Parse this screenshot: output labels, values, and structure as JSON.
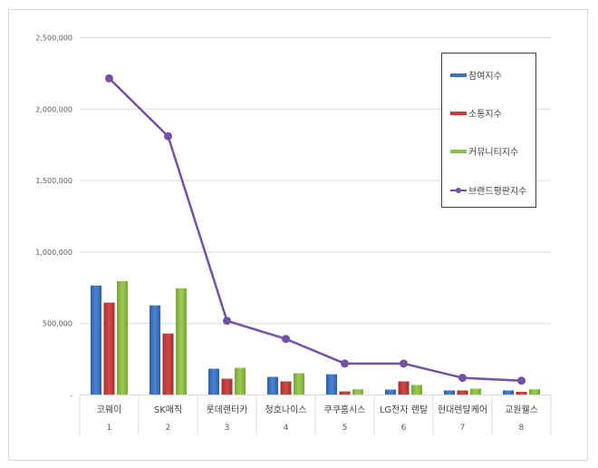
{
  "chart_data": {
    "type": "bar",
    "combo": "bar+line",
    "title": "",
    "xlabel": "",
    "ylabel": "",
    "ylim": [
      0,
      2500000
    ],
    "yticks": [
      0,
      500000,
      1000000,
      1500000,
      2000000,
      2500000
    ],
    "ytick_labels": [
      "-",
      "500,000",
      "1,000,000",
      "1,500,000",
      "2,000,000",
      "2,500,000"
    ],
    "grid": true,
    "legend_position": "right-top",
    "categories": [
      "코웨이",
      "SK매직",
      "롯데렌터카",
      "청호나이스",
      "쿠쿠홈시스",
      "LG전자 렌탈",
      "현대렌탈케어",
      "교원웰스"
    ],
    "category_ranks": [
      "1",
      "2",
      "3",
      "4",
      "5",
      "6",
      "7",
      "8"
    ],
    "series": [
      {
        "name": "참여지수",
        "type": "bar",
        "color": "#3b70c2",
        "values": [
          766000,
          627000,
          184000,
          127000,
          145000,
          38000,
          32000,
          32000
        ]
      },
      {
        "name": "소통지수",
        "type": "bar",
        "color": "#c43b3b",
        "values": [
          646000,
          430000,
          114000,
          95000,
          25000,
          95000,
          32000,
          22000
        ]
      },
      {
        "name": "커뮤니티지수",
        "type": "bar",
        "color": "#8fbc45",
        "values": [
          797000,
          747000,
          190000,
          152000,
          40000,
          70000,
          44000,
          40000
        ]
      },
      {
        "name": "브랜드평판지수",
        "type": "line",
        "color": "#7352a3",
        "values": [
          2215000,
          1810000,
          519000,
          392000,
          220000,
          220000,
          120000,
          100000
        ]
      }
    ]
  },
  "legend": {
    "items": [
      {
        "label": "참여지수",
        "kind": "bar",
        "color": "#3b70c2"
      },
      {
        "label": "소통지수",
        "kind": "bar",
        "color": "#c43b3b"
      },
      {
        "label": "커뮤니티지수",
        "kind": "bar",
        "color": "#8fbc45"
      },
      {
        "label": "브랜드평판지수",
        "kind": "line",
        "color": "#7352a3"
      }
    ]
  }
}
